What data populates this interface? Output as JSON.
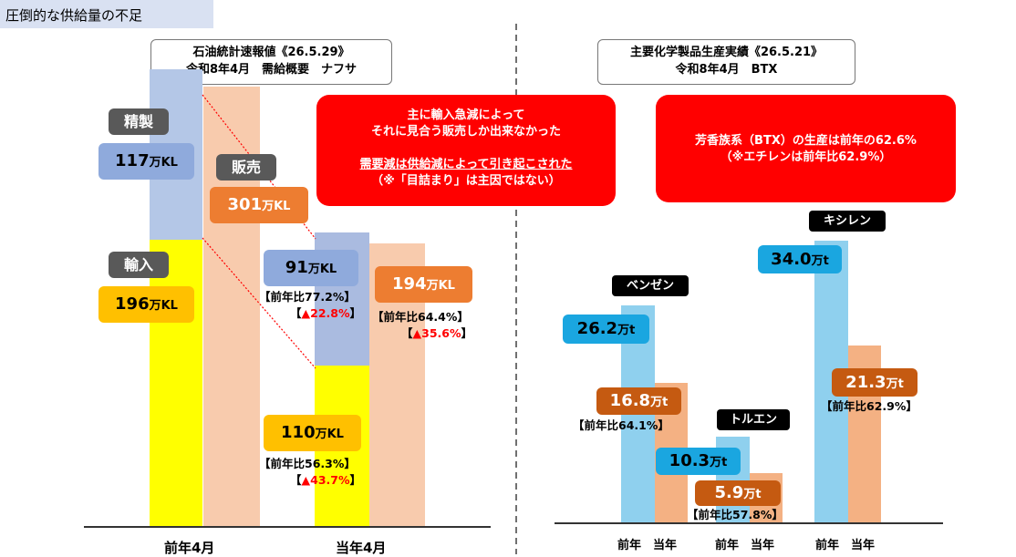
{
  "header": {
    "title": "圧倒的な供給量の不足"
  },
  "left_panel": {
    "title_line1": "石油統計速報値《26.5.29》",
    "title_line2": "令和8年4月　需給概要　ナフサ",
    "label_seisei": "精製",
    "label_hanbai": "販売",
    "label_yunyu": "輸入",
    "val_seisei_prev": "117",
    "val_hanbai_prev": "301",
    "val_yunyu_prev": "196",
    "val_seisei_curr": "91",
    "val_hanbai_curr": "194",
    "val_yunyu_curr": "110",
    "unit": "万KL",
    "note_seisei_ratio": "【前年比77.2%】",
    "note_seisei_chg": "▲22.8%",
    "note_hanbai_ratio": "【前年比64.4%】",
    "note_hanbai_chg": "▲35.6%",
    "note_yunyu_ratio": "【前年比56.3%】",
    "note_yunyu_chg": "▲43.7%",
    "bracket_open": "【",
    "bracket_close": "】",
    "callout_line1": "主に輸入急減によって",
    "callout_line2": "それに見合う販売しか出来なかった",
    "callout_line3": "需要減は供給減によって引き起こされた",
    "callout_line4": "（※「目詰まり」は主因ではない）",
    "x_prev": "前年4月",
    "x_curr": "当年4月"
  },
  "right_panel": {
    "title_line1": "主要化学製品生産実績《26.5.21》",
    "title_line2": "令和8年4月　BTX",
    "callout_line1": "芳香族系（BTX）の生産は前年の62.6%",
    "callout_line2": "（※エチレンは前年比62.9%）",
    "tag_benzene": "ベンゼン",
    "tag_toluene": "トルエン",
    "tag_xylene": "キシレン",
    "val_benzene_prev": "26.2",
    "val_benzene_curr": "16.8",
    "val_toluene_prev": "10.3",
    "val_toluene_curr": "5.9",
    "val_xylene_prev": "34.0",
    "val_xylene_curr": "21.3",
    "unit": "万t",
    "note_benzene": "【前年比64.1%】",
    "note_toluene": "【前年比57.8%】",
    "note_xylene": "【前年比62.9%】",
    "x_prev": "前年",
    "x_curr": "当年"
  },
  "colors": {
    "seisei": "#b4c7e7",
    "seisei_curr": "#aabbe0",
    "yunyu": "#ffff00",
    "hanbai": "#f8cbad",
    "blue_label": "#8faadc",
    "orange_label": "#ed7d31",
    "gold_label": "#ffc000",
    "btx_prev": "#8fd0ee",
    "btx_curr": "#f4b183",
    "btx_prev_label": "#1aa6e0",
    "btx_curr_label": "#c55a11",
    "callout": "#ff0000"
  },
  "chart_data": [
    {
      "type": "bar",
      "categories": [
        "前年4月",
        "当年4月"
      ],
      "series": [
        {
          "name": "輸入",
          "values": [
            196,
            110
          ]
        },
        {
          "name": "精製",
          "values": [
            117,
            91
          ]
        },
        {
          "name": "販売",
          "values": [
            301,
            194
          ]
        }
      ],
      "stacked_series": [
        "輸入",
        "精製"
      ],
      "unit": "万KL"
    },
    {
      "type": "bar",
      "categories": [
        "ベンゼン",
        "トルエン",
        "キシレン"
      ],
      "series": [
        {
          "name": "前年",
          "values": [
            26.2,
            10.3,
            34.0
          ]
        },
        {
          "name": "当年",
          "values": [
            16.8,
            5.9,
            21.3
          ]
        }
      ],
      "unit": "万t"
    }
  ]
}
